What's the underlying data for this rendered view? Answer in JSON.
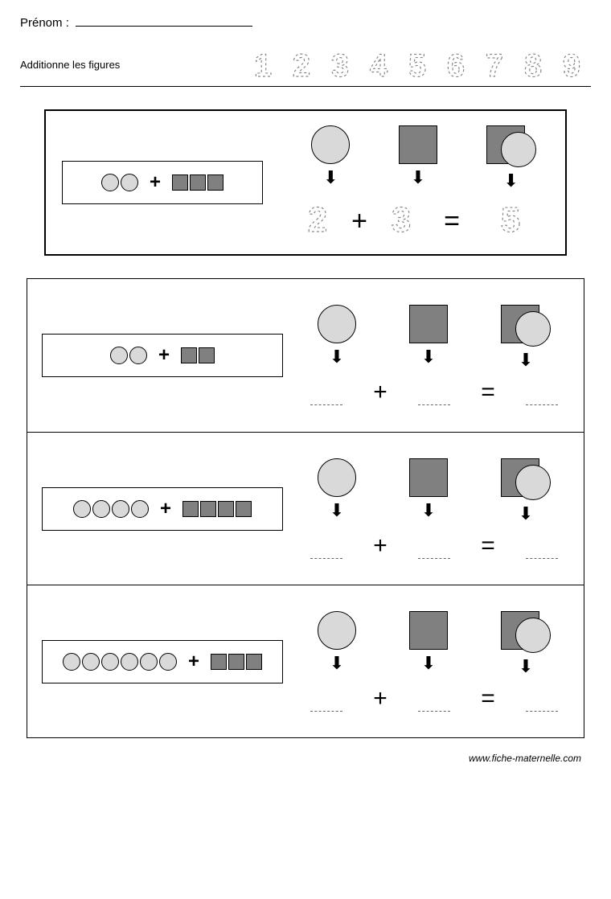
{
  "header": {
    "name_label": "Prénom :",
    "instruction": "Additionne les figures",
    "digits": [
      "1",
      "2",
      "3",
      "4",
      "5",
      "6",
      "7",
      "8",
      "9"
    ]
  },
  "colors": {
    "circle_fill": "#d9d9d9",
    "square_fill": "#808080",
    "border": "#000000",
    "dashed_digit": "#999999",
    "background": "#ffffff"
  },
  "shapes": {
    "small_circle_size": 22,
    "small_square_size": 20,
    "large_circle_size": 48,
    "large_square_size": 48
  },
  "example": {
    "circles": 2,
    "squares": 3,
    "equation": {
      "a": "2",
      "op": "+",
      "b": "3",
      "eq": "=",
      "result": "5"
    }
  },
  "exercises": [
    {
      "circles": 2,
      "squares": 2
    },
    {
      "circles": 4,
      "squares": 4
    },
    {
      "circles": 6,
      "squares": 3
    }
  ],
  "symbols": {
    "plus": "+",
    "equals": "="
  },
  "footer": "www.fiche-maternelle.com"
}
